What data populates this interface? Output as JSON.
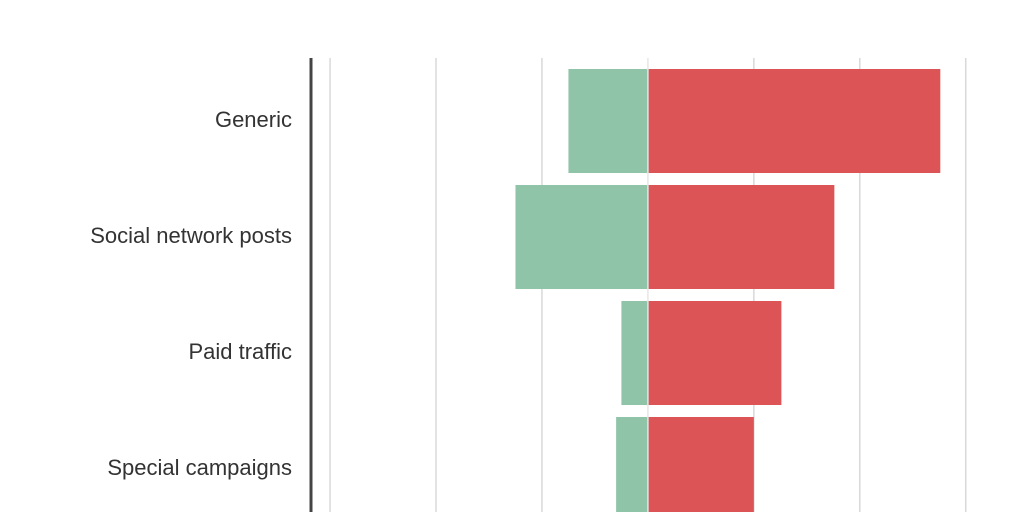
{
  "chart_data": {
    "type": "diverging-bar",
    "categories": [
      "Generic",
      "Social network posts",
      "Paid traffic",
      "Special campaigns"
    ],
    "series": [
      {
        "color": "#8fc4a8",
        "values": [
          -0.75,
          -1.25,
          -0.25,
          -0.3
        ]
      },
      {
        "color": "#dc5455",
        "values": [
          2.76,
          1.76,
          1.26,
          1.0
        ]
      }
    ],
    "xlim": [
      -3.18,
      3.55
    ],
    "xticks": [
      -3,
      -2,
      -1,
      0,
      1,
      2,
      3
    ],
    "grid": true
  }
}
